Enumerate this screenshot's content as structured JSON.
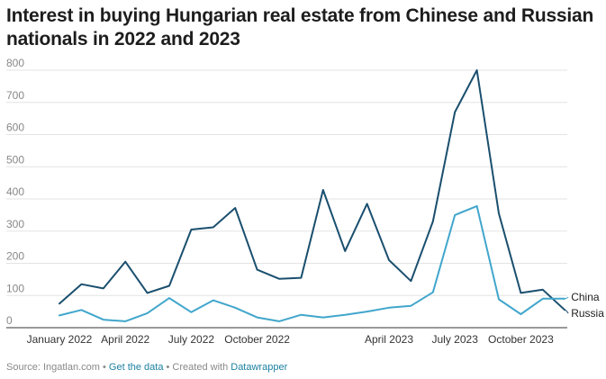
{
  "chart_data": {
    "type": "line",
    "title": "Interest in buying Hungarian real estate from Chinese and Russian nationals in 2022 and 2023",
    "ylim": [
      0,
      800
    ],
    "yticks": [
      0,
      100,
      200,
      300,
      400,
      500,
      600,
      700,
      800
    ],
    "grid": true,
    "months": 24,
    "x_tick_labels": [
      {
        "month": 1,
        "label": "January 2022"
      },
      {
        "month": 4,
        "label": "April 2022"
      },
      {
        "month": 7,
        "label": "July 2022"
      },
      {
        "month": 10,
        "label": "October 2022"
      },
      {
        "month": 16,
        "label": "April 2023"
      },
      {
        "month": 19,
        "label": "July 2023"
      },
      {
        "month": 22,
        "label": "October 2023"
      }
    ],
    "series": [
      {
        "name": "Russia",
        "color": "#1a4f6e",
        "values": [
          75,
          135,
          122,
          205,
          108,
          130,
          305,
          312,
          372,
          180,
          152,
          155,
          428,
          238,
          385,
          210,
          145,
          330,
          670,
          800,
          355,
          108,
          118,
          55
        ]
      },
      {
        "name": "China",
        "color": "#41a6cc",
        "values": [
          38,
          55,
          25,
          20,
          45,
          92,
          48,
          85,
          62,
          32,
          20,
          40,
          32,
          40,
          50,
          62,
          68,
          110,
          350,
          378,
          88,
          42,
          90,
          90
        ]
      }
    ]
  },
  "footer": {
    "source": "Source: Ingatlan.com",
    "sep1": " • ",
    "get_data": "Get the data",
    "sep2": " • Created with ",
    "tool": "Datawrapper"
  }
}
